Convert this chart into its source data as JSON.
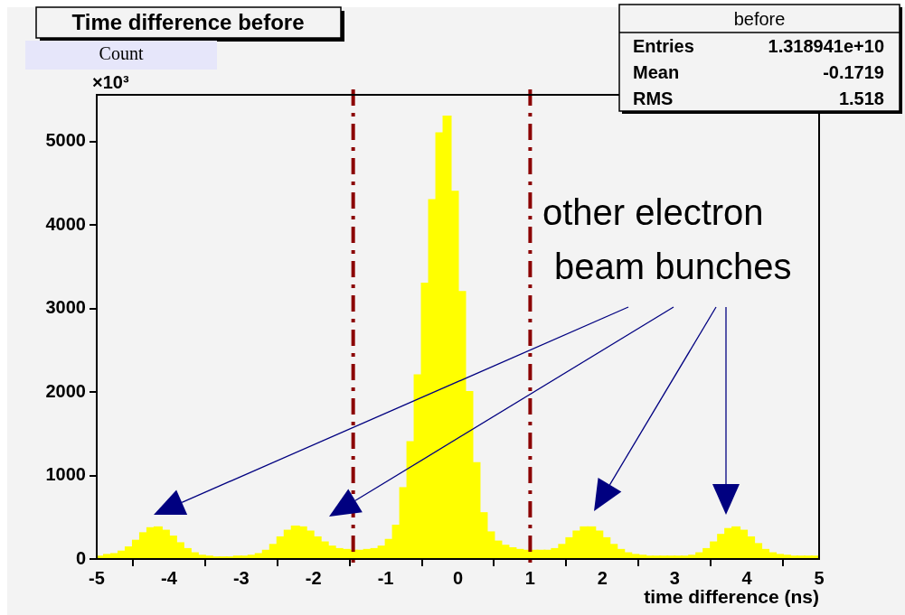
{
  "chart_data": {
    "type": "histogram",
    "title": "Time difference before",
    "ylabel": "Count",
    "xlabel": "time difference (ns)",
    "bins": [
      -5,
      -4.9,
      -4.8,
      -4.7,
      -4.6,
      -4.5,
      -4.4,
      -4.3,
      -4.2,
      -4.1,
      -4,
      -3.9,
      -3.8,
      -3.7,
      -3.6,
      -3.5,
      -3.4,
      -3.3,
      -3.2,
      -3.1,
      -3,
      -2.9,
      -2.8,
      -2.7,
      -2.6,
      -2.5,
      -2.4,
      -2.3,
      -2.2,
      -2.1,
      -2,
      -1.9,
      -1.8,
      -1.7,
      -1.6,
      -1.5,
      -1.4,
      -1.3,
      -1.2,
      -1.1,
      -1,
      -0.9,
      -0.8,
      -0.7,
      -0.6,
      -0.5,
      -0.4,
      -0.3,
      -0.2,
      -0.1,
      0,
      0.1,
      0.2,
      0.3,
      0.4,
      0.5,
      0.6,
      0.7,
      0.8,
      0.9,
      1,
      1.1,
      1.2,
      1.3,
      1.4,
      1.5,
      1.6,
      1.7,
      1.8,
      1.9,
      2,
      2.1,
      2.2,
      2.3,
      2.4,
      2.5,
      2.6,
      2.7,
      2.8,
      2.9,
      3,
      3.1,
      3.2,
      3.3,
      3.4,
      3.5,
      3.6,
      3.7,
      3.8,
      3.9,
      4,
      4.1,
      4.2,
      4.3,
      4.4,
      4.5,
      4.6,
      4.7,
      4.8,
      4.9,
      5
    ],
    "values": [
      30,
      50,
      60,
      90,
      140,
      220,
      310,
      370,
      380,
      340,
      270,
      190,
      120,
      70,
      40,
      30,
      20,
      20,
      20,
      30,
      30,
      40,
      60,
      100,
      170,
      260,
      340,
      390,
      380,
      330,
      260,
      200,
      150,
      120,
      110,
      100,
      100,
      110,
      120,
      150,
      230,
      400,
      850,
      1400,
      2200,
      3300,
      4300,
      5100,
      5300,
      4400,
      3200,
      2000,
      1150,
      550,
      320,
      210,
      160,
      130,
      110,
      100,
      100,
      100,
      100,
      120,
      170,
      250,
      330,
      380,
      380,
      330,
      250,
      170,
      110,
      70,
      50,
      40,
      30,
      30,
      30,
      30,
      30,
      30,
      40,
      70,
      120,
      200,
      290,
      360,
      380,
      340,
      260,
      180,
      110,
      70,
      50,
      40,
      30,
      30,
      30,
      30
    ],
    "color": "#ffff00",
    "xlim": [
      -5,
      5
    ],
    "xticks": [
      -5,
      -4,
      -3,
      -2,
      -1,
      0,
      1,
      2,
      3,
      4,
      5
    ],
    "ylim": [
      0,
      5560
    ],
    "yticks": [
      0,
      1000,
      2000,
      3000,
      4000,
      5000
    ],
    "ref_lines": [
      {
        "axis": "x",
        "value": -1.45,
        "color": "#8b0000",
        "line_style": "dashed"
      },
      {
        "axis": "x",
        "value": 1,
        "color": "#8b0000",
        "line_style": "dashed"
      }
    ],
    "annotations": [
      "×10³",
      "before",
      "Entries",
      "1.318941e+10",
      "Mean",
      "-0.1719",
      "RMS",
      "1.518",
      "other electron beam bunches"
    ]
  }
}
